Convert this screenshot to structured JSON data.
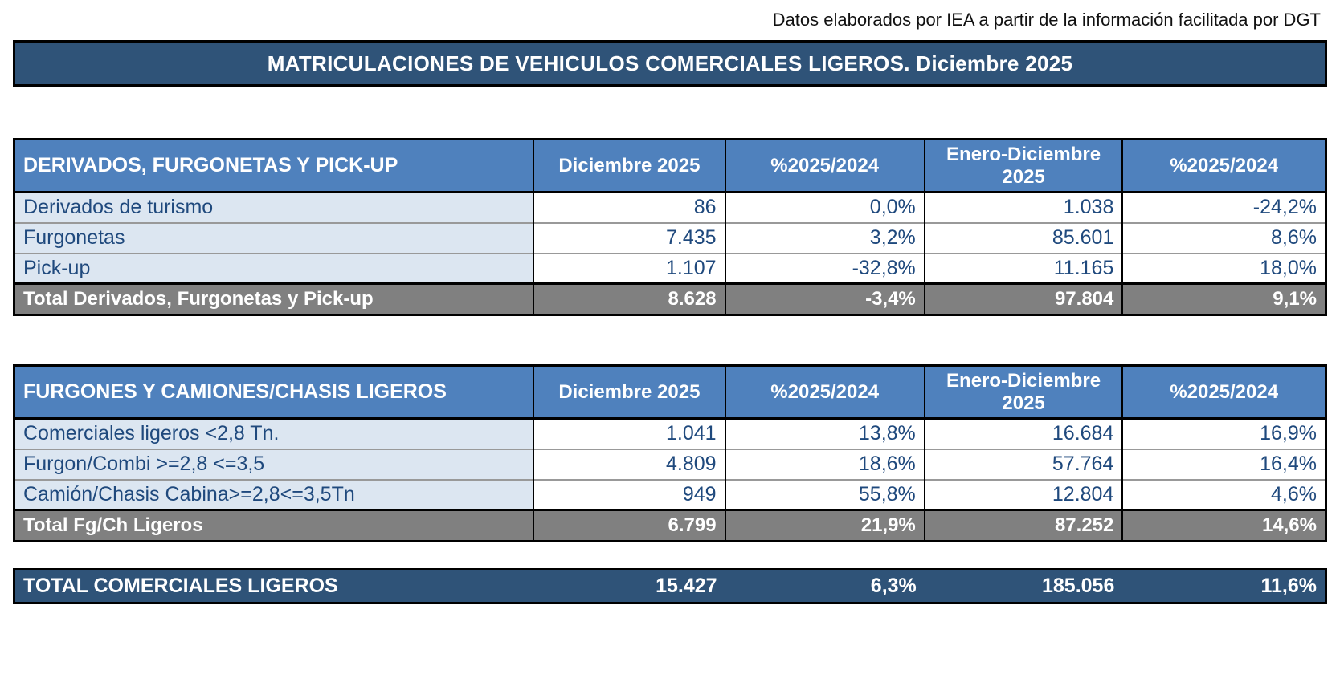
{
  "page": {
    "source_note": "Datos elaborados por IEA a partir de la información facilitada por DGT",
    "title": "MATRICULACIONES DE VEHICULOS COMERCIALES LIGEROS. Diciembre 2025"
  },
  "columns": [
    "Diciembre 2025",
    "%2025/2024",
    "Enero-Diciembre 2025",
    "%2025/2024"
  ],
  "tables": [
    {
      "header": "DERIVADOS, FURGONETAS Y PICK-UP",
      "rows": [
        {
          "label": "Derivados de turismo",
          "values": [
            "86",
            "0,0%",
            "1.038",
            "-24,2%"
          ]
        },
        {
          "label": "Furgonetas",
          "values": [
            "7.435",
            "3,2%",
            "85.601",
            "8,6%"
          ]
        },
        {
          "label": "Pick-up",
          "values": [
            "1.107",
            "-32,8%",
            "11.165",
            "18,0%"
          ]
        }
      ],
      "total": {
        "label": "Total Derivados, Furgonetas y Pick-up",
        "values": [
          "8.628",
          "-3,4%",
          "97.804",
          "9,1%"
        ]
      }
    },
    {
      "header": "FURGONES Y CAMIONES/CHASIS LIGEROS",
      "rows": [
        {
          "label": "Comerciales ligeros <2,8 Tn.",
          "values": [
            "1.041",
            "13,8%",
            "16.684",
            "16,9%"
          ]
        },
        {
          "label": "Furgon/Combi >=2,8 <=3,5",
          "values": [
            "4.809",
            "18,6%",
            "57.764",
            "16,4%"
          ]
        },
        {
          "label": "Camión/Chasis Cabina>=2,8<=3,5Tn",
          "values": [
            "949",
            "55,8%",
            "12.804",
            "4,6%"
          ]
        }
      ],
      "total": {
        "label": "Total Fg/Ch Ligeros",
        "values": [
          "6.799",
          "21,9%",
          "87.252",
          "14,6%"
        ]
      }
    }
  ],
  "grand_total": {
    "label": "TOTAL COMERCIALES LIGEROS",
    "values": [
      "15.427",
      "6,3%",
      "185.056",
      "11,6%"
    ]
  },
  "colors": {
    "title_bar_navy": "#2F5378",
    "header_blue": "#4F81BD",
    "row_light_blue": "#DCE6F1",
    "total_gray": "#808080",
    "text_navy": "#1F497D"
  }
}
